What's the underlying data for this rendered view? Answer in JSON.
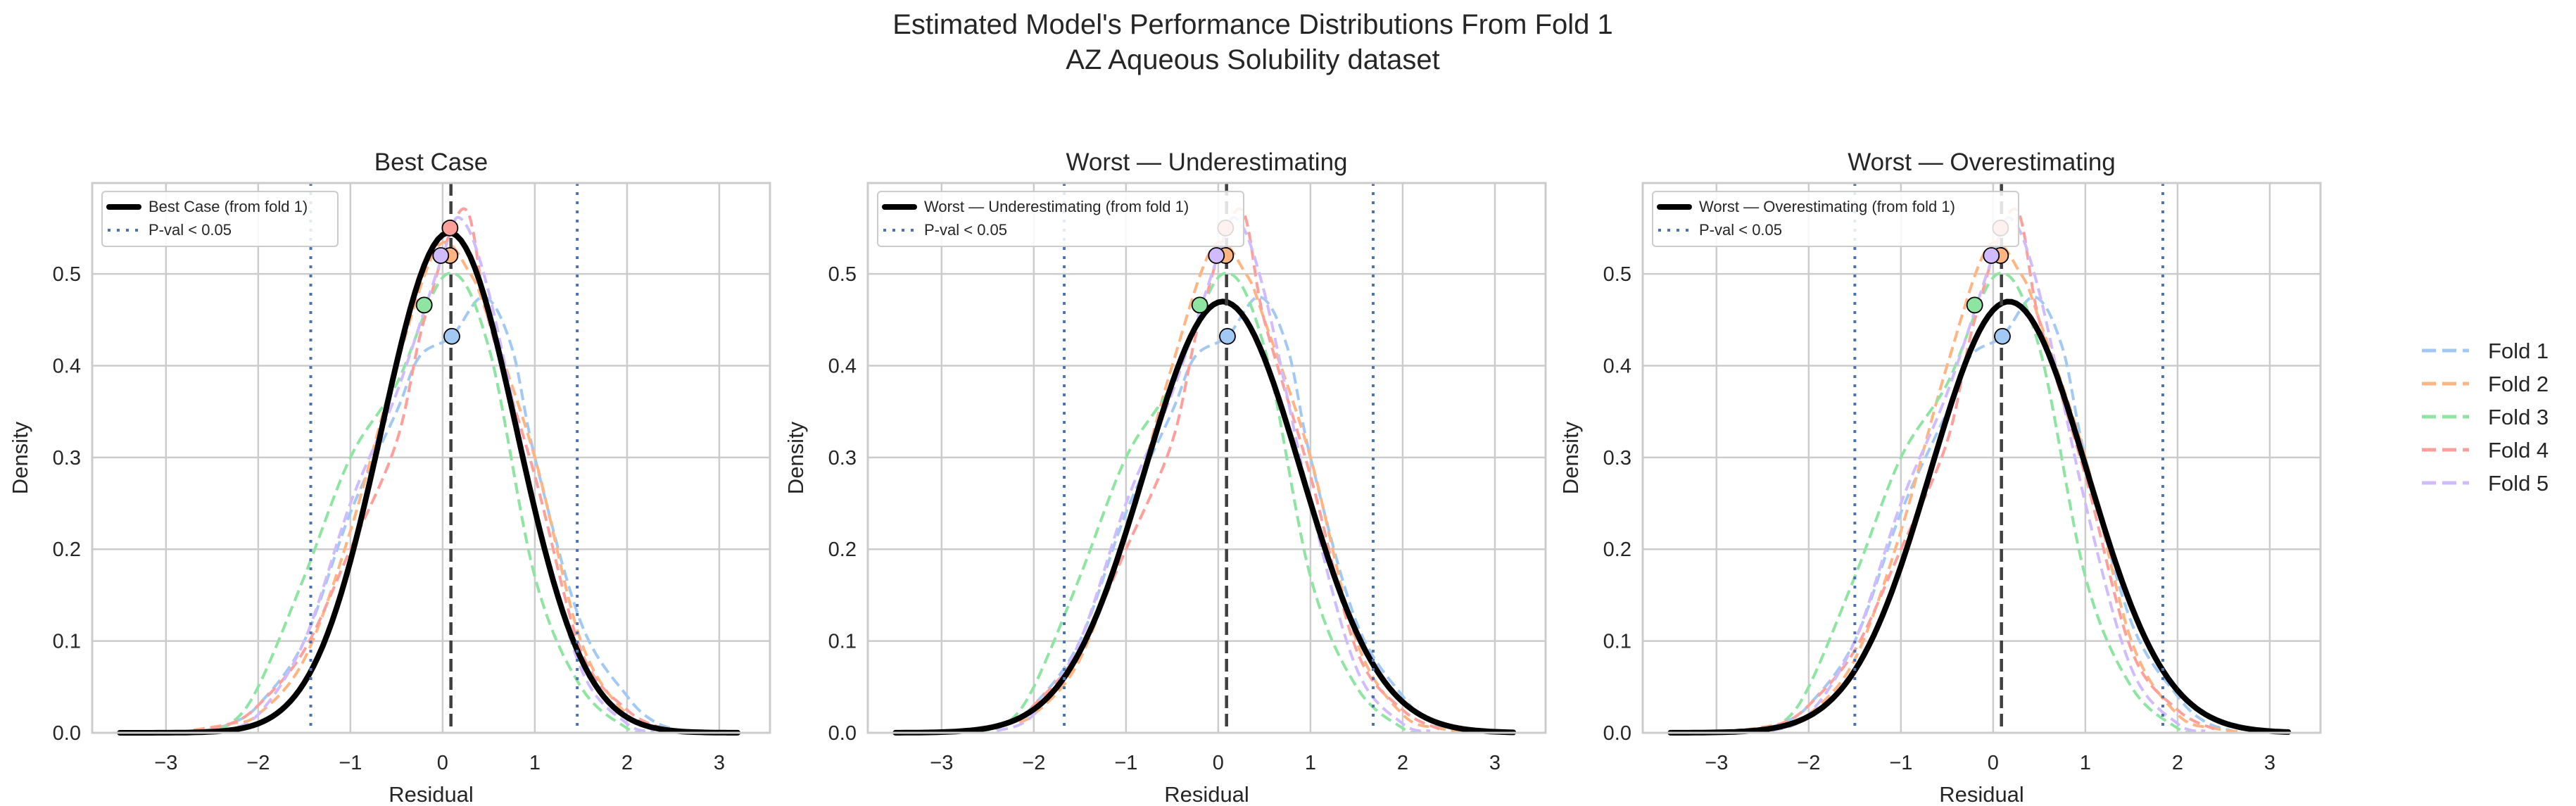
{
  "chart_data": {
    "title": "Estimated Model's Performance Distributions From Fold 1",
    "subtitle": "AZ Aqueous Solubility dataset",
    "colors": {
      "folds": [
        "#a1c9f4",
        "#ffb482",
        "#8de5a1",
        "#ff9f9b",
        "#d0bbff"
      ],
      "reference": "#000000",
      "pval": "#4c72b0",
      "median": "#404040",
      "grid": "#cccccc"
    },
    "legend": {
      "placement": "right-outside",
      "entries": [
        "Fold 1",
        "Fold 2",
        "Fold 3",
        "Fold 4",
        "Fold 5"
      ]
    },
    "fold_curves": [
      {
        "name": "Fold 1",
        "x": [
          -2.6,
          -2.3,
          -2,
          -1.5,
          -1,
          -0.5,
          -0.25,
          0.1,
          0.45,
          0.75,
          1,
          1.5,
          2,
          2.3,
          2.6
        ],
        "y": [
          0.002,
          0.01,
          0.03,
          0.1,
          0.24,
          0.35,
          0.41,
          0.432,
          0.475,
          0.42,
          0.3,
          0.12,
          0.04,
          0.012,
          0.002
        ]
      },
      {
        "name": "Fold 2",
        "x": [
          -2.7,
          -2.3,
          -2,
          -1.5,
          -1,
          -0.5,
          -0.05,
          0.3,
          0.5,
          1,
          1.5,
          2,
          2.4,
          2.7
        ],
        "y": [
          0.003,
          0.01,
          0.02,
          0.08,
          0.22,
          0.4,
          0.53,
          0.5,
          0.45,
          0.3,
          0.1,
          0.02,
          0.005,
          0.001
        ]
      },
      {
        "name": "Fold 3",
        "x": [
          -2.6,
          -2.3,
          -2,
          -1.5,
          -1,
          -0.5,
          0.05,
          0.5,
          1,
          1.5,
          2,
          2.2
        ],
        "y": [
          0.002,
          0.01,
          0.05,
          0.17,
          0.3,
          0.38,
          0.5,
          0.42,
          0.17,
          0.05,
          0.005,
          0.001
        ]
      },
      {
        "name": "Fold 4",
        "x": [
          -2.7,
          -2.3,
          -2,
          -1.5,
          -1,
          -0.5,
          -0.2,
          0.23,
          0.5,
          1,
          1.5,
          2,
          2.4
        ],
        "y": [
          0.002,
          0.01,
          0.03,
          0.09,
          0.2,
          0.317,
          0.45,
          0.571,
          0.449,
          0.28,
          0.09,
          0.025,
          0.004
        ]
      },
      {
        "name": "Fold 5",
        "x": [
          -2.4,
          -2,
          -1.5,
          -1,
          -0.5,
          0,
          0.2,
          0.5,
          1,
          1.5,
          2,
          2.3
        ],
        "y": [
          0.002,
          0.02,
          0.1,
          0.25,
          0.37,
          0.52,
          0.56,
          0.48,
          0.25,
          0.07,
          0.01,
          0.002
        ]
      }
    ],
    "fold_peak_markers": [
      {
        "name": "Fold 1",
        "x": 0.1,
        "y": 0.432
      },
      {
        "name": "Fold 2",
        "x": 0.08,
        "y": 0.52
      },
      {
        "name": "Fold 3",
        "x": -0.2,
        "y": 0.466
      },
      {
        "name": "Fold 4",
        "x": 0.08,
        "y": 0.55
      },
      {
        "name": "Fold 5",
        "x": -0.02,
        "y": 0.52
      }
    ],
    "panels": [
      {
        "type": "line",
        "title": "Best Case",
        "xlabel": "Residual",
        "ylabel": "Density",
        "xlim": [
          -3.8,
          3.55
        ],
        "ylim": [
          0,
          0.599
        ],
        "xticks": [
          "-3",
          "-2",
          "-1",
          "0",
          "1",
          "2",
          "3"
        ],
        "yticks": [
          "0.0",
          "0.1",
          "0.2",
          "0.3",
          "0.4",
          "0.5"
        ],
        "grid": true,
        "legend_placement": "upper-left",
        "legend_labels": [
          "Best Case (from fold 1)",
          "P-val < 0.05"
        ],
        "reference_normal": {
          "mean": 0.07,
          "sd": 0.732,
          "x_range": [
            -3.5,
            3.2
          ]
        },
        "median_line": 0.09,
        "pval_lines": [
          -1.43,
          1.46
        ]
      },
      {
        "type": "line",
        "title": "Worst — Underestimating",
        "xlabel": "Residual",
        "ylabel": "Density",
        "xlim": [
          -3.8,
          3.55
        ],
        "ylim": [
          0,
          0.599
        ],
        "xticks": [
          "-3",
          "-2",
          "-1",
          "0",
          "1",
          "2",
          "3"
        ],
        "yticks": [
          "0.0",
          "0.1",
          "0.2",
          "0.3",
          "0.4",
          "0.5"
        ],
        "grid": true,
        "legend_placement": "upper-left",
        "legend_labels": [
          "Worst — Underestimating (from fold 1)",
          "P-val < 0.05"
        ],
        "reference_normal": {
          "mean": 0.05,
          "sd": 0.849,
          "x_range": [
            -3.5,
            3.2
          ]
        },
        "median_line": 0.09,
        "pval_lines": [
          -1.67,
          1.68
        ]
      },
      {
        "type": "line",
        "title": "Worst — Overestimating",
        "xlabel": "Residual",
        "ylabel": "Density",
        "xlim": [
          -3.8,
          3.55
        ],
        "ylim": [
          0,
          0.599
        ],
        "xticks": [
          "-3",
          "-2",
          "-1",
          "0",
          "1",
          "2",
          "3"
        ],
        "yticks": [
          "0.0",
          "0.1",
          "0.2",
          "0.3",
          "0.4",
          "0.5"
        ],
        "grid": true,
        "legend_placement": "upper-left",
        "legend_labels": [
          "Worst — Overestimating (from fold 1)",
          "P-val < 0.05"
        ],
        "reference_normal": {
          "mean": 0.17,
          "sd": 0.849,
          "x_range": [
            -3.5,
            3.2
          ]
        },
        "median_line": 0.09,
        "pval_lines": [
          -1.5,
          1.84
        ]
      }
    ]
  }
}
